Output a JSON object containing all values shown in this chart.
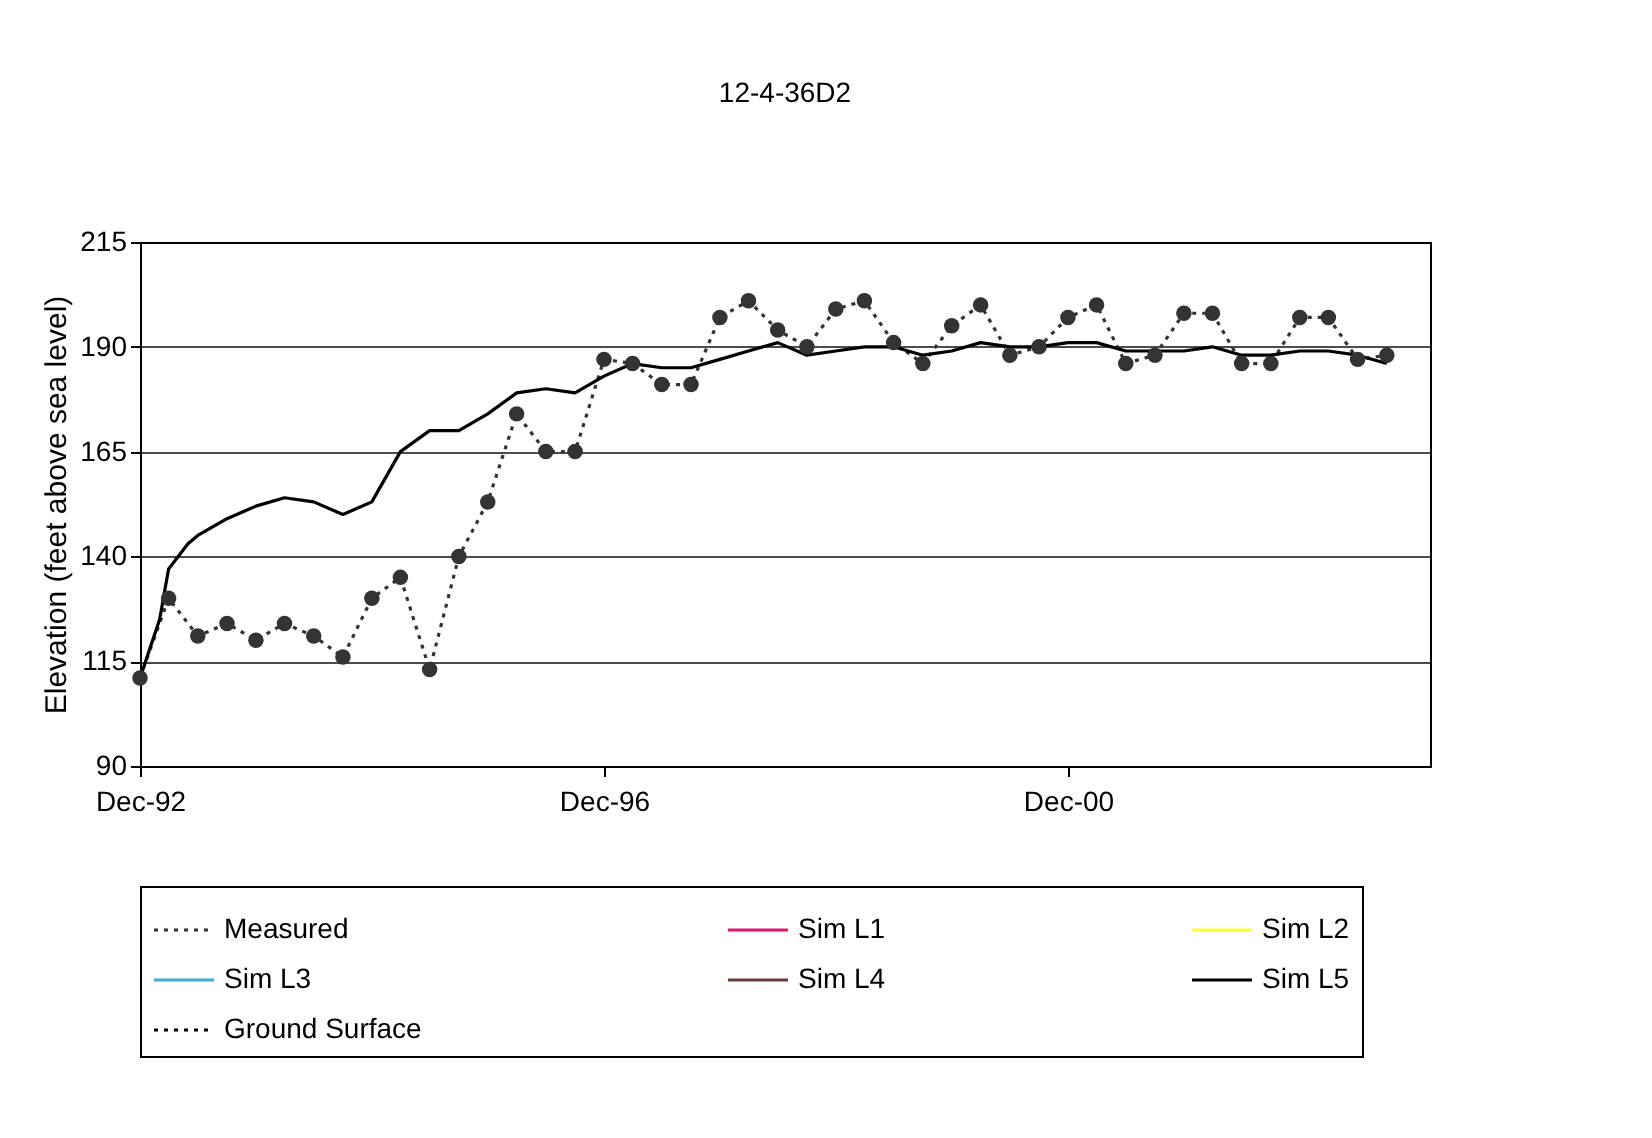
{
  "chart_data": {
    "type": "line",
    "title": "12-4-36D2",
    "ylabel": "Elevation (feet above sea level)",
    "ylim": [
      90,
      215
    ],
    "yticks": [
      90,
      115,
      140,
      165,
      190,
      215
    ],
    "xlim": [
      "1992-12-01",
      "2004-01-15"
    ],
    "xticks": [
      {
        "value": "1992-12-01",
        "label": "Dec-92"
      },
      {
        "value": "1996-12-01",
        "label": "Dec-96"
      },
      {
        "value": "2000-12-01",
        "label": "Dec-00"
      }
    ],
    "grid": "y",
    "legend": "bottom",
    "series": [
      {
        "name": "Measured",
        "color": "#333333",
        "marker": "circle",
        "line_style": "dotted",
        "x": [
          "1992-12",
          "1993-03",
          "1993-06",
          "1993-09",
          "1993-12",
          "1994-03",
          "1994-06",
          "1994-09",
          "1994-12",
          "1995-03",
          "1995-06",
          "1995-09",
          "1995-12",
          "1996-03",
          "1996-06",
          "1996-09",
          "1996-12",
          "1997-03",
          "1997-06",
          "1997-09",
          "1997-12",
          "1998-03",
          "1998-06",
          "1998-09",
          "1998-12",
          "1999-03",
          "1999-06",
          "1999-09",
          "1999-12",
          "2000-03",
          "2000-06",
          "2000-09",
          "2000-12",
          "2001-03",
          "2001-06",
          "2001-09",
          "2001-12",
          "2002-03",
          "2002-06",
          "2002-09",
          "2002-12",
          "2003-03",
          "2003-06",
          "2003-09"
        ],
        "values": [
          111,
          130,
          121,
          124,
          120,
          124,
          121,
          116,
          130,
          135,
          113,
          140,
          153,
          174,
          165,
          165,
          187,
          186,
          181,
          181,
          197,
          201,
          194,
          190,
          199,
          201,
          191,
          186,
          195,
          200,
          188,
          190,
          197,
          200,
          186,
          188,
          198,
          198,
          186,
          186,
          197,
          197,
          187,
          188
        ]
      },
      {
        "name": "Sim L1",
        "color": "#e0196e",
        "line_style": "solid"
      },
      {
        "name": "Sim L2",
        "color": "#ffff33",
        "line_style": "solid"
      },
      {
        "name": "Sim L3",
        "color": "#3fa9d0",
        "line_style": "solid"
      },
      {
        "name": "Sim L4",
        "color": "#6b3f3f",
        "line_style": "solid"
      },
      {
        "name": "Sim L5",
        "color": "#000000",
        "marker": "none",
        "line_style": "solid",
        "x": [
          "1992-12",
          "1993-02",
          "1993-03",
          "1993-05",
          "1993-06",
          "1993-09",
          "1993-12",
          "1994-03",
          "1994-06",
          "1994-09",
          "1994-12",
          "1995-03",
          "1995-06",
          "1995-09",
          "1995-12",
          "1996-03",
          "1996-06",
          "1996-09",
          "1996-12",
          "1997-03",
          "1997-06",
          "1997-09",
          "1997-12",
          "1998-03",
          "1998-06",
          "1998-09",
          "1998-12",
          "1999-03",
          "1999-06",
          "1999-09",
          "1999-12",
          "2000-03",
          "2000-06",
          "2000-09",
          "2000-12",
          "2001-03",
          "2001-06",
          "2001-09",
          "2001-12",
          "2002-03",
          "2002-06",
          "2002-09",
          "2002-12",
          "2003-03",
          "2003-06",
          "2003-09"
        ],
        "values": [
          111,
          125,
          137,
          143,
          145,
          149,
          152,
          154,
          153,
          150,
          153,
          165,
          170,
          170,
          174,
          179,
          180,
          179,
          183,
          186,
          185,
          185,
          187,
          189,
          191,
          188,
          189,
          190,
          190,
          188,
          189,
          191,
          190,
          190,
          191,
          191,
          189,
          189,
          189,
          190,
          188,
          188,
          189,
          189,
          188,
          186
        ]
      },
      {
        "name": "Ground Surface",
        "color": "#000000",
        "line_style": "dotted"
      }
    ]
  }
}
